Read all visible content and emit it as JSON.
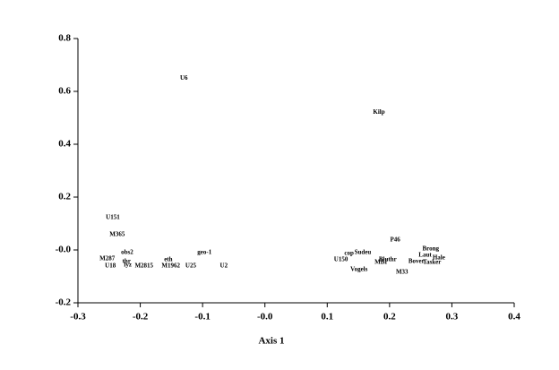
{
  "chart_data": {
    "type": "scatter",
    "xlabel": "Axis 1",
    "labels": [
      "U6",
      "Kilp",
      "U151",
      "M365",
      "P46",
      "geo-1",
      "obs2",
      "Sudeu",
      "cop",
      "Brong",
      "Laut",
      "U150",
      "Bluthr",
      "eth",
      "M287",
      "M2815",
      "M1962",
      "U25",
      "U2",
      "U18",
      "thr",
      "lyz",
      "Vogels",
      "MBI",
      "M33",
      "Bover",
      "Tasker",
      "Hale"
    ],
    "x": [
      -0.13,
      0.183,
      -0.244,
      -0.237,
      0.209,
      -0.097,
      -0.221,
      0.157,
      0.135,
      0.266,
      0.257,
      0.122,
      0.197,
      -0.155,
      -0.253,
      -0.194,
      -0.151,
      -0.119,
      -0.066,
      -0.248,
      -0.222,
      -0.22,
      0.151,
      0.186,
      0.22,
      0.243,
      0.268,
      0.279
    ],
    "values": [
      0.65,
      0.52,
      0.122,
      0.058,
      0.037,
      -0.01,
      -0.01,
      -0.01,
      -0.014,
      0.003,
      -0.02,
      -0.037,
      -0.037,
      -0.037,
      -0.034,
      -0.061,
      -0.061,
      -0.061,
      -0.061,
      -0.061,
      -0.044,
      -0.058,
      -0.075,
      -0.047,
      -0.085,
      -0.044,
      -0.047,
      -0.03
    ],
    "color": "#000000",
    "xlim": [
      -0.3,
      0.4
    ],
    "xticks": [
      -0.3,
      -0.2,
      -0.1,
      {
        "value": 0,
        "label": "-0.0"
      },
      0.1,
      0.2,
      0.3,
      0.4
    ],
    "ylim": [
      -0.2,
      0.8
    ],
    "yticks": [
      -0.2,
      {
        "value": 0,
        "label": "-0.0"
      },
      0.2,
      0.4,
      0.6,
      0.8
    ],
    "grid": false
  }
}
